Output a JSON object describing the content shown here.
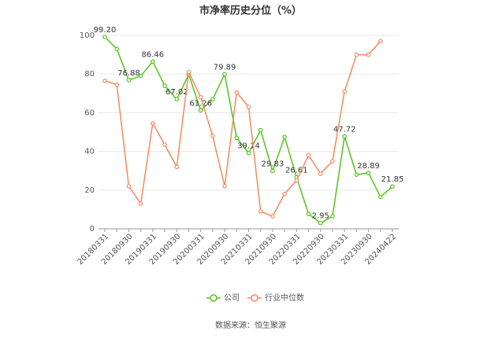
{
  "chart_data": {
    "type": "line",
    "title": "市净率历史分位（%）",
    "source": "数据来源：恒生聚源",
    "categories": [
      "20180331",
      null,
      "20180930",
      null,
      "20190331",
      null,
      "20190930",
      null,
      "20200331",
      null,
      "20200930",
      null,
      "20210331",
      null,
      "20210930",
      null,
      "20220331",
      null,
      "20220930",
      null,
      "20230331",
      null,
      "20230930",
      null,
      "20240422"
    ],
    "series": [
      {
        "name": "公司",
        "color": "#52c41a",
        "values": [
          99.2,
          93,
          76.88,
          79,
          86.46,
          74,
          67.02,
          79.7,
          61.26,
          67,
          79.89,
          47,
          39.14,
          51,
          29.83,
          47.5,
          26.61,
          7.7,
          2.95,
          6.5,
          47.72,
          28,
          28.89,
          16.5,
          21.85
        ],
        "value_labels": [
          "99.20",
          null,
          "76.88",
          null,
          "86.46",
          null,
          "67.02",
          null,
          "61.26",
          null,
          "79.89",
          null,
          "39.14",
          null,
          "29.83",
          null,
          "26.61",
          null,
          "2.95",
          null,
          "47.72",
          null,
          "28.89",
          null,
          "21.85"
        ]
      },
      {
        "name": "行业中位数",
        "color": "#f4895f",
        "values": [
          76.5,
          74.5,
          22,
          13,
          54.5,
          43.5,
          32,
          81,
          68,
          48,
          22,
          70.5,
          63,
          9,
          6.5,
          18,
          25,
          38,
          28.5,
          35,
          71,
          90,
          90,
          97,
          null
        ]
      }
    ],
    "ylim": [
      0,
      100
    ],
    "yticks": [
      0,
      20,
      40,
      60,
      80,
      100
    ],
    "grid": true
  }
}
